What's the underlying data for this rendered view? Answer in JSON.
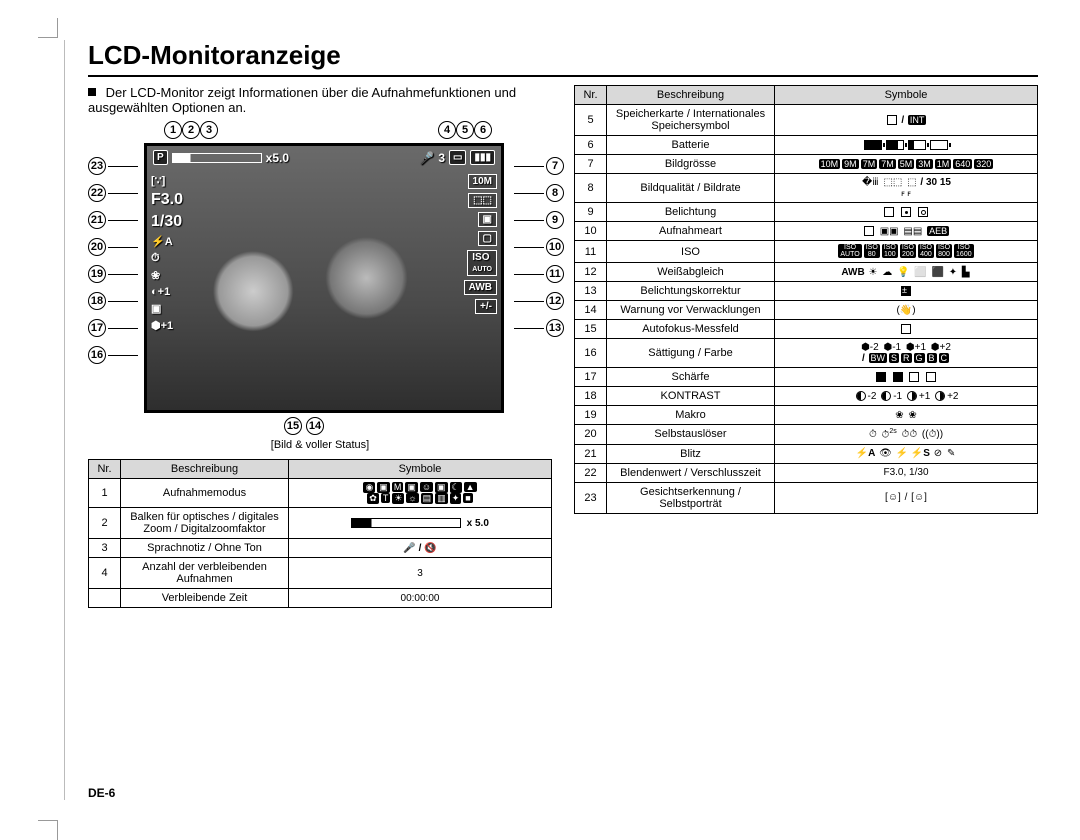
{
  "page": {
    "title": "LCD-Monitoranzeige",
    "intro": "Der LCD-Monitor zeigt Informationen über die Aufnahmefunktionen und ausgewählten Optionen an.",
    "caption": "[Bild & voller Status]",
    "footer": "DE-6"
  },
  "callouts": {
    "top": [
      "1",
      "2",
      "3",
      "4",
      "5",
      "6"
    ],
    "left": [
      "23",
      "22",
      "21",
      "20",
      "19",
      "18",
      "17",
      "16"
    ],
    "right": [
      "7",
      "8",
      "9",
      "10",
      "11",
      "12",
      "13"
    ],
    "bottom": [
      "15",
      "14"
    ]
  },
  "lcd": {
    "mode_chip": "P",
    "zoom": "x5.0",
    "remaining": "3",
    "aperture": "F3.0",
    "shutter": "1/30",
    "megapixel": "10M",
    "iso_label": "ISO",
    "iso_auto": "AUTO",
    "awb": "AWB",
    "ev": "+/-",
    "flash": "⚡A",
    "timer": "⏱",
    "macro": "❀",
    "contrast": "◐+1",
    "sharp": "▣",
    "sat": "⬢+1",
    "face": "[∵]",
    "mic": "🎤"
  },
  "table_headers": {
    "nr": "Nr.",
    "desc": "Beschreibung",
    "sym": "Symbole"
  },
  "table_left": [
    {
      "nr": "1",
      "desc": "Aufnahmemodus",
      "sym_html": "<span class='blk'>◉</span><span class='blk'>▣</span><span class='blk'>M</span><span class='blk'>▣</span><span class='blk'>☺</span><span class='blk'>▣</span><span class='blk'>☾</span><span class='blk'>▲</span><br><span class='blk'>✿</span><span class='blk'>T</span><span class='blk'>☀</span><span class='blk'>☼</span><span class='blk'>▤</span><span class='blk'>▥</span><span class='blk'>✦</span><span class='blk'>■</span>"
    },
    {
      "nr": "2",
      "desc": "Balken für optisches / digitales Zoom / Digitalzoomfaktor",
      "sym_html": "<span style='display:inline-block;width:110px;height:10px;border:1px solid #000;background:linear-gradient(to right,#000 0 18%,transparent 18%);vertical-align:middle'></span> &nbsp;<b>x 5.0</b>"
    },
    {
      "nr": "3",
      "desc": "Sprachnotiz / Ohne Ton",
      "sym_html": "<b>🎤 / 🔇</b>"
    },
    {
      "nr": "4",
      "desc": "Anzahl der verbleibenden Aufnahmen",
      "sym_html": "3"
    },
    {
      "nr": "",
      "desc": "Verbleibende Zeit",
      "sym_html": "00:00:00"
    }
  ],
  "table_right": [
    {
      "nr": "5",
      "desc": "Speicherkarte / Internationales Speichersymbol",
      "sym_html": "<span class='sq'></span> <b>/</b> <span class='blk'>INT</span>"
    },
    {
      "nr": "6",
      "desc": "Batterie",
      "sym_html": "<span class='batt'><span class='fill' style='width:100%'></span></span><span class='batt'><span class='fill' style='width:66%'></span></span><span class='batt'><span class='fill' style='width:33%'></span></span><span class='batt'><span class='fill' style='width:0%'></span></span>"
    },
    {
      "nr": "7",
      "desc": "Bildgrösse",
      "sym_html": "<span class='blk'>10M</span><span class='blk'>9M</span><span class='blk'>7M</span><span class='blk'>7M</span><span class='blk'>5M</span><span class='blk'>3M</span><span class='blk'>1M</span><span class='blk'>640</span><span class='blk'>320</span>"
    },
    {
      "nr": "8",
      "desc": "Bildqualität / Bildrate",
      "sym_html": "<span class='ic'>�ⅲ</span> <span class='ic'>⬚⬚</span> <span class='ic'>⬚</span> <b>/</b> <b>30 15</b><br><span style='font-size:8px'>ꜰ ꜰ</span>"
    },
    {
      "nr": "9",
      "desc": "Belichtung",
      "sym_html": "<span class='sq'></span> <span class='sq' style='position:relative'><span style='position:absolute;left:3px;top:3px;width:3px;height:3px;background:#000;border-radius:50%'></span></span> <span class='sq' style='position:relative'><span style='position:absolute;left:2px;top:2px;width:5px;height:5px;border:1px solid #000;border-radius:50%'></span></span>"
    },
    {
      "nr": "10",
      "desc": "Aufnahmeart",
      "sym_html": "<span class='sq'></span> <span class='ic'>▣▣</span> <span class='ic'>▤▤</span> <span class='blk'>AEB</span>"
    },
    {
      "nr": "11",
      "desc": "ISO",
      "sym_html": "<span class='blk' style='font-size:7px'>ISO<br>AUTO</span><span class='blk' style='font-size:7px'>ISO<br>80</span><span class='blk' style='font-size:7px'>ISO<br>100</span><span class='blk' style='font-size:7px'>ISO<br>200</span><span class='blk' style='font-size:7px'>ISO<br>400</span><span class='blk' style='font-size:7px'>ISO<br>800</span><span class='blk' style='font-size:7px'>ISO<br>1600</span>"
    },
    {
      "nr": "12",
      "desc": "Weißabgleich",
      "sym_html": "<b>AWB</b> <span class='ic'>☀</span> <span class='ic'>☁</span> <span class='ic'>💡</span> <span class='ic'>⬜</span> <span class='ic'>⬛</span> <span class='ic'>✦</span> <span class='ic'>▙</span>"
    },
    {
      "nr": "13",
      "desc": "Belichtungskorrektur",
      "sym_html": "<span class='sqf' style='position:relative'><span style='position:absolute;left:1px;top:-1px;color:#fff;font-size:9px'>±</span></span>"
    },
    {
      "nr": "14",
      "desc": "Warnung vor Verwacklungen",
      "sym_html": "<span class='ic'>(👋)</span>"
    },
    {
      "nr": "15",
      "desc": "Autofokus-Messfeld",
      "sym_html": "<span class='sq'></span>"
    },
    {
      "nr": "16",
      "desc": "Sättigung / Farbe",
      "sym_html": "<span class='ic'>⬢-2</span> <span class='ic'>⬢-1</span> <span class='ic'>⬢+1</span> <span class='ic'>⬢+2</span><br><b>/</b> <span class='blk'>BW</span><span class='blk'>S</span><span class='blk'>R</span><span class='blk'>G</span><span class='blk'>B</span><span class='blk'>C</span>"
    },
    {
      "nr": "17",
      "desc": "Schärfe",
      "sym_html": "<span class='sqf'></span> <span class='sqf'></span> <span class='sq'></span> <span class='sq'></span>"
    },
    {
      "nr": "18",
      "desc": "KONTRAST",
      "sym_html": "<span class='circ halfcirc-l'></span>-2 <span class='circ halfcirc-l'></span>-1 <span class='circ halfcirc-r'></span>+1 <span class='circ halfcirc-r'></span>+2"
    },
    {
      "nr": "19",
      "desc": "Makro",
      "sym_html": "<span class='ic'>❀</span> <span class='ic'>❀</span>"
    },
    {
      "nr": "20",
      "desc": "Selbstauslöser",
      "sym_html": "<span class='ic'>⏱</span> <span class='ic'>⏱<sup style='font-size:7px'>2s</sup></span> <span class='ic'>⏱⏱</span> <span class='ic'>((⏱))</span>"
    },
    {
      "nr": "21",
      "desc": "Blitz",
      "sym_html": "<b>⚡A</b> <span class='ic'>👁</span> <b>⚡</b> <b>⚡S</b> <span class='ic'>⊘</span> <span class='ic'>✎</span>"
    },
    {
      "nr": "22",
      "desc": "Blendenwert / Verschlusszeit",
      "sym_html": "F3.0, 1/30"
    },
    {
      "nr": "23",
      "desc": "Gesichtserkennung / Selbstporträt",
      "sym_html": "<span class='ic'>[☺]</span> / <span class='ic'>[☺]</span>"
    }
  ]
}
